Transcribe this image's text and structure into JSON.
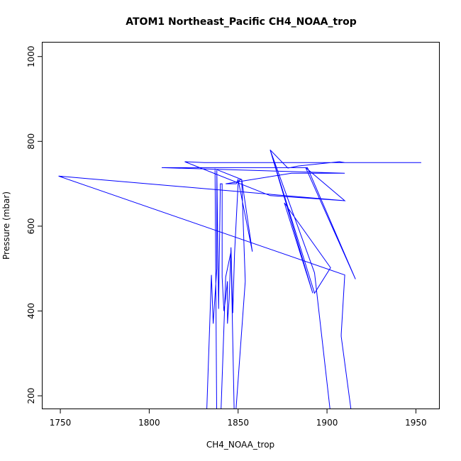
{
  "chart_data": {
    "type": "line",
    "title": "ATOM1 Northeast_Pacific CH4_NOAA_trop",
    "xlabel": "CH4_NOAA_trop",
    "ylabel": "Pressure (mbar)",
    "xlim": [
      1740,
      1963
    ],
    "ylim": [
      1033,
      170
    ],
    "y_reversed": true,
    "xticks": [
      1750,
      1800,
      1850,
      1900,
      1950
    ],
    "yticks": [
      200,
      400,
      600,
      800,
      1000
    ],
    "grid": false,
    "legend": "none",
    "series": [
      {
        "color": "#0000ff",
        "markers": "open-circle",
        "path": [
          [
            1832,
            120
          ],
          [
            1835,
            485
          ],
          [
            1836,
            370
          ],
          [
            1838,
            500
          ],
          [
            1838,
            735
          ],
          [
            1839,
            405
          ],
          [
            1840,
            700
          ],
          [
            1841,
            700
          ],
          [
            1841,
            480
          ],
          [
            1842,
            400
          ],
          [
            1843,
            430
          ],
          [
            1844,
            470
          ],
          [
            1844,
            370
          ],
          [
            1845,
            430
          ],
          [
            1846,
            550
          ],
          [
            1847,
            395
          ],
          [
            1848,
            535
          ],
          [
            1850,
            700
          ],
          [
            1851,
            710
          ],
          [
            1852,
            710
          ],
          [
            1854,
            470
          ],
          [
            1848,
            120
          ],
          [
            1846,
            540
          ],
          [
            1843,
            480
          ],
          [
            1840,
            120
          ],
          [
            1838,
            120
          ],
          [
            1837,
            735
          ],
          [
            1852,
            710
          ],
          [
            1858,
            540
          ],
          [
            1850,
            710
          ],
          [
            1849,
            700
          ],
          [
            1843,
            700
          ],
          [
            1880,
            725
          ],
          [
            1888,
            725
          ],
          [
            1896,
            725
          ],
          [
            1908,
            725
          ],
          [
            1910,
            725
          ],
          [
            1807,
            738
          ],
          [
            1889,
            738
          ],
          [
            1916,
            475
          ],
          [
            1888,
            738
          ],
          [
            1910,
            660
          ],
          [
            1749,
            718
          ],
          [
            1910,
            485
          ],
          [
            1908,
            345
          ],
          [
            1908,
            340
          ],
          [
            1915,
            120
          ],
          [
            1903,
            120
          ],
          [
            1893,
            490
          ],
          [
            1868,
            780
          ],
          [
            1893,
            442
          ],
          [
            1902,
            502
          ],
          [
            1876,
            655
          ],
          [
            1892,
            442
          ],
          [
            1868,
            780
          ],
          [
            1878,
            737
          ],
          [
            1884,
            742
          ],
          [
            1907,
            752
          ],
          [
            1910,
            750
          ],
          [
            1947,
            750
          ],
          [
            1953,
            750
          ],
          [
            1831,
            750
          ],
          [
            1820,
            752
          ],
          [
            1868,
            672
          ],
          [
            1910,
            660
          ]
        ]
      }
    ]
  }
}
